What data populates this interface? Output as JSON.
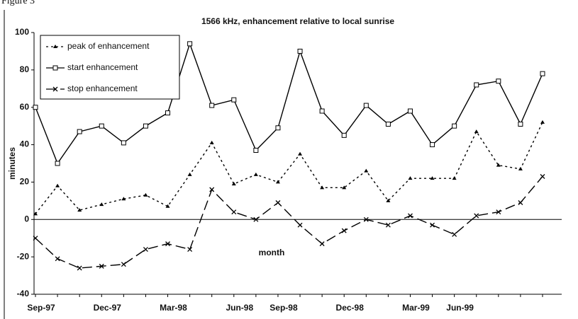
{
  "figure_label": "Figure 3",
  "chart_data": {
    "type": "line",
    "title": "1566 kHz, enhancement relative to local sunrise",
    "y_label": "minutes",
    "x_label": "month",
    "categories": [
      "Sep-97",
      null,
      null,
      "Dec-97",
      null,
      null,
      "Mar-98",
      null,
      null,
      "Jun-98",
      null,
      "Sep-98",
      null,
      null,
      "Dec-98",
      null,
      null,
      "Mar-99",
      null,
      "Jun-99",
      null,
      null,
      null,
      null
    ],
    "series": [
      {
        "name": "peak of enhancement",
        "color": "#000000",
        "dash": "3,4",
        "marker": "triangle",
        "values": [
          3,
          18,
          5,
          8,
          11,
          13,
          7,
          24,
          41,
          19,
          24,
          20,
          35,
          17,
          17,
          26,
          10,
          22,
          22,
          22,
          47,
          29,
          27,
          52
        ]
      },
      {
        "name": "start enhancement",
        "color": "#000000",
        "dash": "none",
        "marker": "square",
        "values": [
          60,
          30,
          47,
          50,
          41,
          50,
          57,
          94,
          61,
          64,
          37,
          49,
          90,
          58,
          45,
          61,
          51,
          58,
          40,
          50,
          72,
          74,
          51,
          78
        ]
      },
      {
        "name": "stop enhancement",
        "color": "#000000",
        "dash": "14,6",
        "marker": "cross",
        "values": [
          -10,
          -21,
          -26,
          -25,
          -24,
          -16,
          -13,
          -16,
          16,
          4,
          0,
          9,
          -3,
          -13,
          -6,
          0,
          -3,
          2,
          -3,
          -8,
          2,
          4,
          9,
          23
        ]
      }
    ],
    "ylim": [
      -40,
      100
    ],
    "yticks": [
      -40,
      -20,
      0,
      20,
      40,
      60,
      80,
      100
    ],
    "grid": false,
    "legend": "upper-left"
  }
}
